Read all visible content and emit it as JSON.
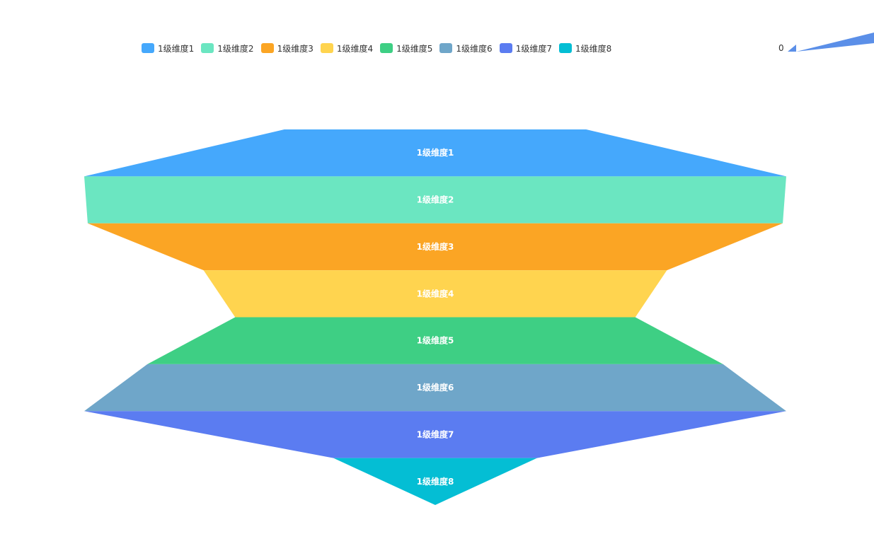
{
  "chart_data": {
    "type": "funnel",
    "title": "",
    "categories": [
      "1级维度1",
      "1级维度2",
      "1级维度3",
      "1级维度4",
      "1级维度5",
      "1级维度6",
      "1级维度7",
      "1级维度8"
    ],
    "widths": [
      0.43,
      1.0,
      0.99,
      0.66,
      0.57,
      0.82,
      1.0,
      0.29
    ],
    "bottom_width": 0.0,
    "colors": [
      "#45a8fc",
      "#6be6c1",
      "#fba524",
      "#ffd44f",
      "#3ecf84",
      "#6fa6c9",
      "#5b7cf1",
      "#04bed4"
    ],
    "legend": {
      "position": "top",
      "items": [
        "1级维度1",
        "1级维度2",
        "1级维度3",
        "1级维度4",
        "1级维度5",
        "1级维度6",
        "1级维度7",
        "1级维度8"
      ]
    },
    "visual_map": {
      "min_label": "0",
      "color": "#5b8fe8"
    }
  }
}
